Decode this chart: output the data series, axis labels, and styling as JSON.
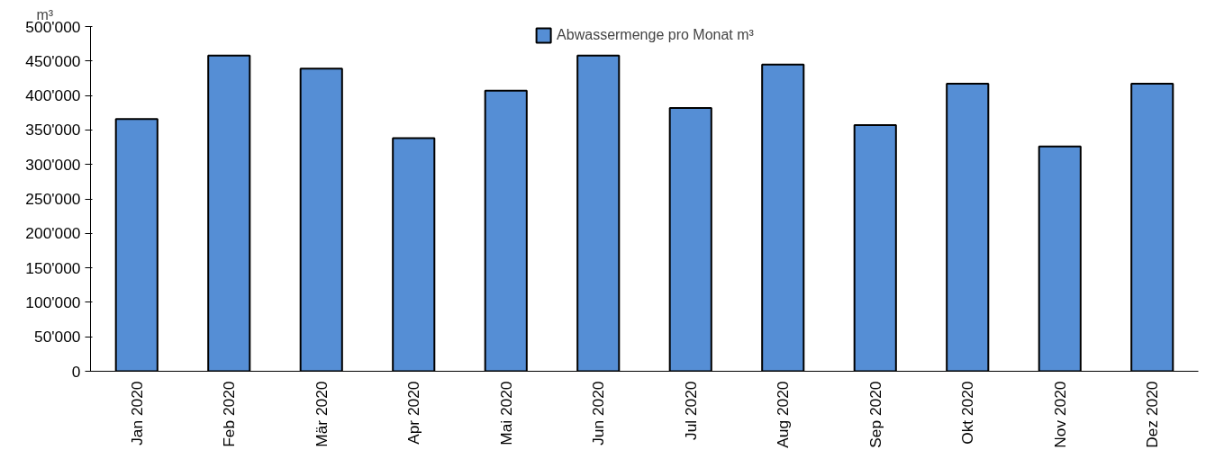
{
  "chart_data": {
    "type": "bar",
    "ylabel": "m³",
    "categories": [
      "Jan 2020",
      "Feb 2020",
      "Mär 2020",
      "Apr 2020",
      "Mai 2020",
      "Jun 2020",
      "Jul 2020",
      "Aug 2020",
      "Sep 2020",
      "Okt 2020",
      "Nov 2020",
      "Dez 2020"
    ],
    "series": [
      {
        "name": "Abwassermenge pro Monat m³",
        "color": "#558ed5",
        "values": [
          366000,
          458000,
          439000,
          338000,
          407000,
          458000,
          382000,
          445000,
          357000,
          417000,
          326000,
          417000
        ]
      }
    ],
    "ylim": [
      0,
      500000
    ],
    "yticks": [
      {
        "value": 0,
        "label": "0"
      },
      {
        "value": 50000,
        "label": "50'000"
      },
      {
        "value": 100000,
        "label": "100'000"
      },
      {
        "value": 150000,
        "label": "150'000"
      },
      {
        "value": 200000,
        "label": "200'000"
      },
      {
        "value": 250000,
        "label": "250'000"
      },
      {
        "value": 300000,
        "label": "300'000"
      },
      {
        "value": 350000,
        "label": "350'000"
      },
      {
        "value": 400000,
        "label": "400'000"
      },
      {
        "value": 450000,
        "label": "450'000"
      },
      {
        "value": 500000,
        "label": "500'000"
      }
    ],
    "grid": false,
    "legend": "top"
  }
}
